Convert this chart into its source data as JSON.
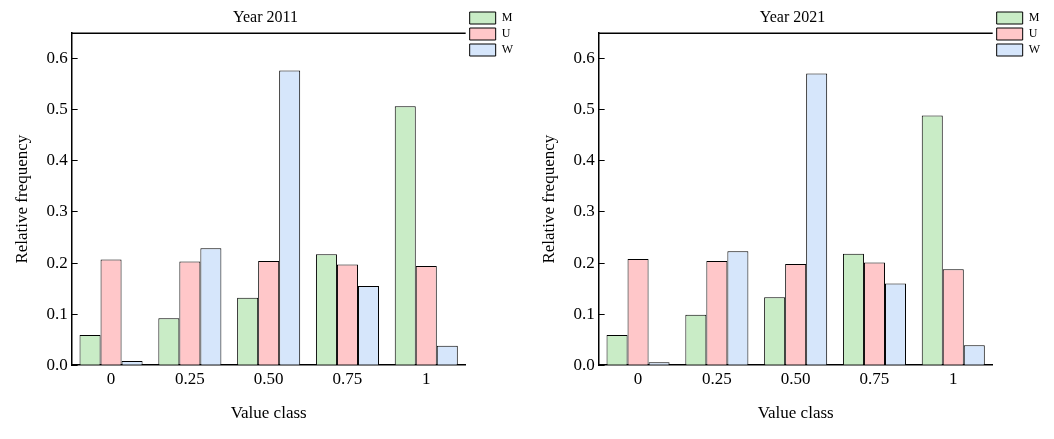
{
  "chart_data": [
    {
      "type": "bar",
      "title": "Year 2011",
      "xlabel": "Value class",
      "ylabel": "Relative frequency",
      "categories": [
        "0",
        "0.25",
        "0.50",
        "0.75",
        "1"
      ],
      "series": [
        {
          "name": "M",
          "color": "#c9ecc6",
          "values": [
            0.059,
            0.092,
            0.132,
            0.217,
            0.507
          ]
        },
        {
          "name": "U",
          "color": "#ffc7c9",
          "values": [
            0.207,
            0.203,
            0.204,
            0.197,
            0.194
          ]
        },
        {
          "name": "W",
          "color": "#d6e6fb",
          "values": [
            0.008,
            0.229,
            0.577,
            0.155,
            0.038
          ]
        }
      ],
      "ylim": [
        0,
        0.65
      ],
      "yticks": [
        {
          "value": 0,
          "label": "0.0"
        },
        {
          "value": 0.1,
          "label": "0.1"
        },
        {
          "value": 0.2,
          "label": "0.2"
        },
        {
          "value": 0.3,
          "label": "0.3"
        },
        {
          "value": 0.4,
          "label": "0.4"
        },
        {
          "value": 0.5,
          "label": "0.5"
        },
        {
          "value": 0.6,
          "label": "0.6"
        }
      ],
      "grid": false,
      "legend": "top right"
    },
    {
      "type": "bar",
      "title": "Year 2021",
      "xlabel": "Value class",
      "ylabel": "Relative frequency",
      "categories": [
        "0",
        "0.25",
        "0.50",
        "0.75",
        "1"
      ],
      "series": [
        {
          "name": "M",
          "color": "#c9ecc6",
          "values": [
            0.059,
            0.099,
            0.133,
            0.218,
            0.489
          ]
        },
        {
          "name": "U",
          "color": "#ffc7c9",
          "values": [
            0.208,
            0.204,
            0.198,
            0.201,
            0.188
          ]
        },
        {
          "name": "W",
          "color": "#d6e6fb",
          "values": [
            0.006,
            0.223,
            0.571,
            0.16,
            0.039
          ]
        }
      ],
      "ylim": [
        0,
        0.65
      ],
      "yticks": [
        {
          "value": 0,
          "label": "0.0"
        },
        {
          "value": 0.1,
          "label": "0.1"
        },
        {
          "value": 0.2,
          "label": "0.2"
        },
        {
          "value": 0.3,
          "label": "0.3"
        },
        {
          "value": 0.4,
          "label": "0.4"
        },
        {
          "value": 0.5,
          "label": "0.5"
        },
        {
          "value": 0.6,
          "label": "0.6"
        }
      ],
      "grid": false,
      "legend": "top right"
    }
  ]
}
